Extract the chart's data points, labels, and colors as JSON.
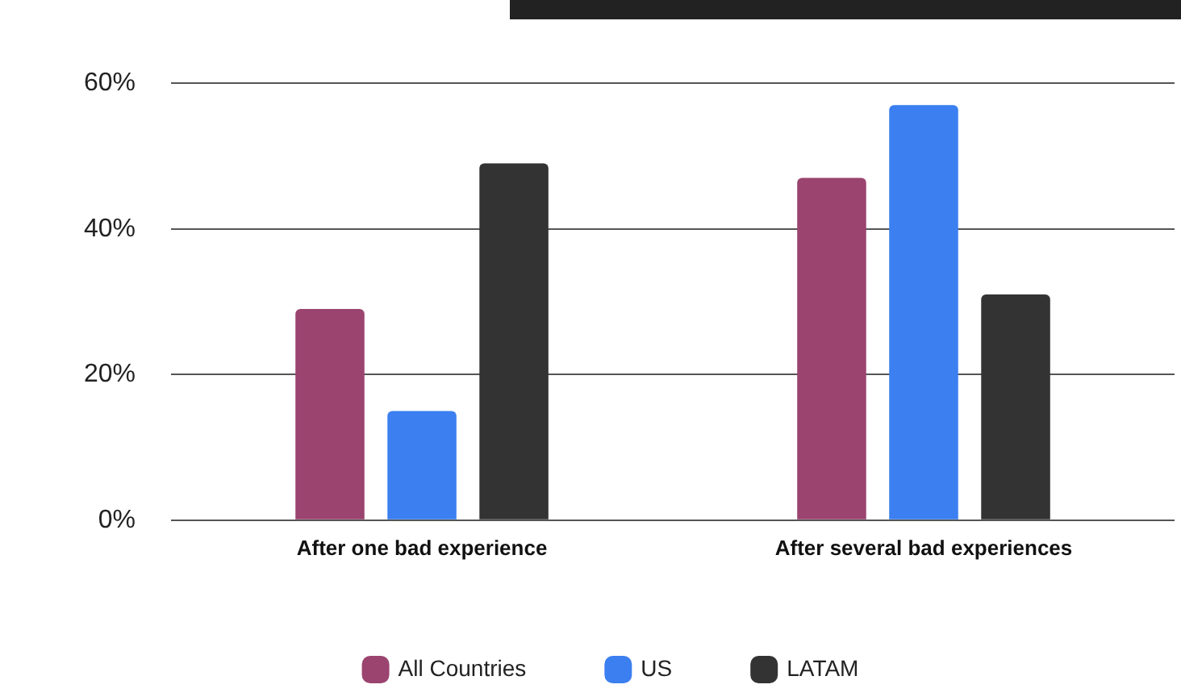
{
  "chart_data": {
    "type": "bar",
    "categories": [
      "After one bad experience",
      "After several bad experiences"
    ],
    "series": [
      {
        "name": "All Countries",
        "color": "#9b4470",
        "values": [
          29,
          47
        ]
      },
      {
        "name": "US",
        "color": "#3b7ff0",
        "values": [
          15,
          57
        ]
      },
      {
        "name": "LATAM",
        "color": "#333333",
        "values": [
          49,
          31
        ]
      }
    ],
    "ylim": [
      0,
      60
    ],
    "yticks": [
      {
        "value": 0,
        "label": "0%"
      },
      {
        "value": 20,
        "label": "20%"
      },
      {
        "value": 40,
        "label": "40%"
      },
      {
        "value": 60,
        "label": "60%"
      }
    ],
    "grid": "y",
    "legend": "bottom"
  }
}
